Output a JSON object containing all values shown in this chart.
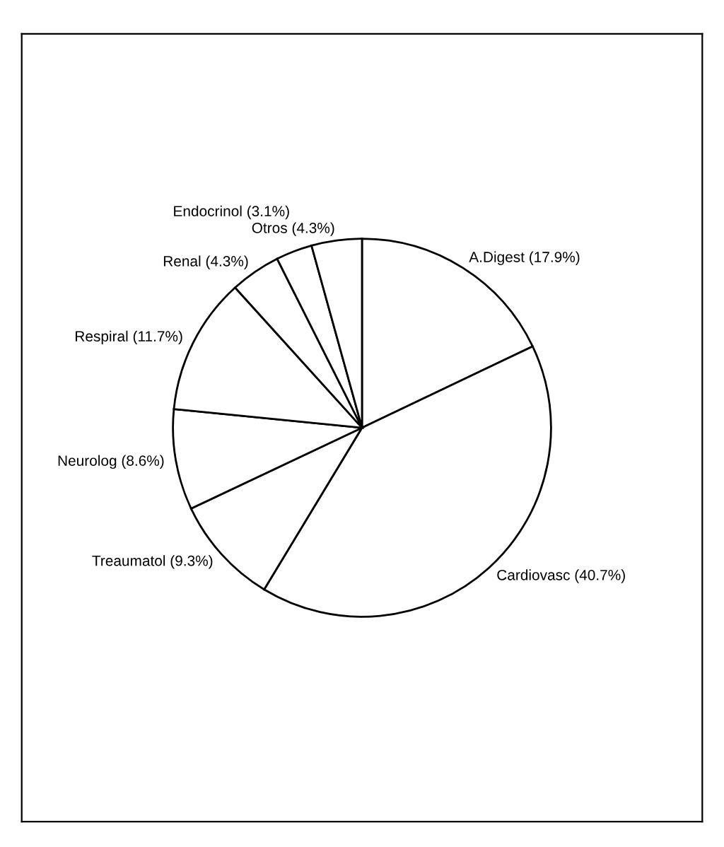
{
  "chart_data": {
    "type": "pie",
    "categories": [
      "A.Digest (17.9%)",
      "Cardiovasc (40.7%)",
      "Treaumatol (9.3%)",
      "Neurolog (8.6%)",
      "Respiral (11.7%)",
      "Renal (4.3%)",
      "Endocrinol (3.1%)",
      "Otros (4.3%)"
    ],
    "values": [
      17.9,
      40.7,
      9.3,
      8.6,
      11.7,
      4.3,
      3.1,
      4.3
    ],
    "colors": [
      "#ffffff",
      "#ffffff",
      "#ffffff",
      "#ffffff",
      "#ffffff",
      "#ffffff",
      "#ffffff",
      "#ffffff"
    ]
  }
}
